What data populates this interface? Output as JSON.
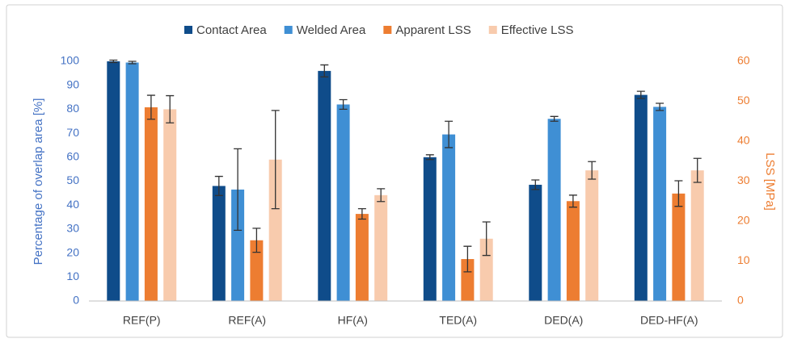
{
  "chart_data": {
    "type": "bar",
    "categories": [
      "REF(P)",
      "REF(A)",
      "HF(A)",
      "TED(A)",
      "DED(A)",
      "DED-HF(A)"
    ],
    "ylabel": "Percentage of overlap area [%]",
    "y2label": "LSS [MPa]",
    "ylim": [
      0,
      100
    ],
    "yticks": [
      0,
      10,
      20,
      30,
      40,
      50,
      60,
      70,
      80,
      90,
      100
    ],
    "y2lim": [
      0,
      60
    ],
    "y2ticks": [
      0,
      10,
      20,
      30,
      40,
      50,
      60
    ],
    "legend": "top",
    "series": [
      {
        "name": "Contact Area",
        "color": "#0f4c8a",
        "values": [
          100,
          48,
          96,
          60,
          48.5,
          86
        ],
        "errors": [
          0.5,
          4,
          2.5,
          1,
          2,
          1.5
        ]
      },
      {
        "name": "Welded Area",
        "color": "#3f8fd4",
        "values": [
          99.5,
          46.5,
          82,
          69.5,
          76,
          81
        ],
        "errors": [
          0.5,
          17,
          2,
          5.5,
          1,
          1.5
        ]
      },
      {
        "name": "Apparent LSS",
        "color": "#ed7d31",
        "axis": "y2",
        "values": [
          48.5,
          15.2,
          21.8,
          10.5,
          25,
          26.9
        ],
        "errors": [
          3,
          3,
          1.3,
          3.2,
          1.5,
          3.2
        ]
      },
      {
        "name": "Effective LSS",
        "color": "#f8cbad",
        "axis": "y2",
        "values": [
          48,
          35.4,
          26.5,
          15.6,
          32.7,
          32.7
        ],
        "errors": [
          3.4,
          12.3,
          1.6,
          4.2,
          2.2,
          3
        ]
      }
    ]
  }
}
